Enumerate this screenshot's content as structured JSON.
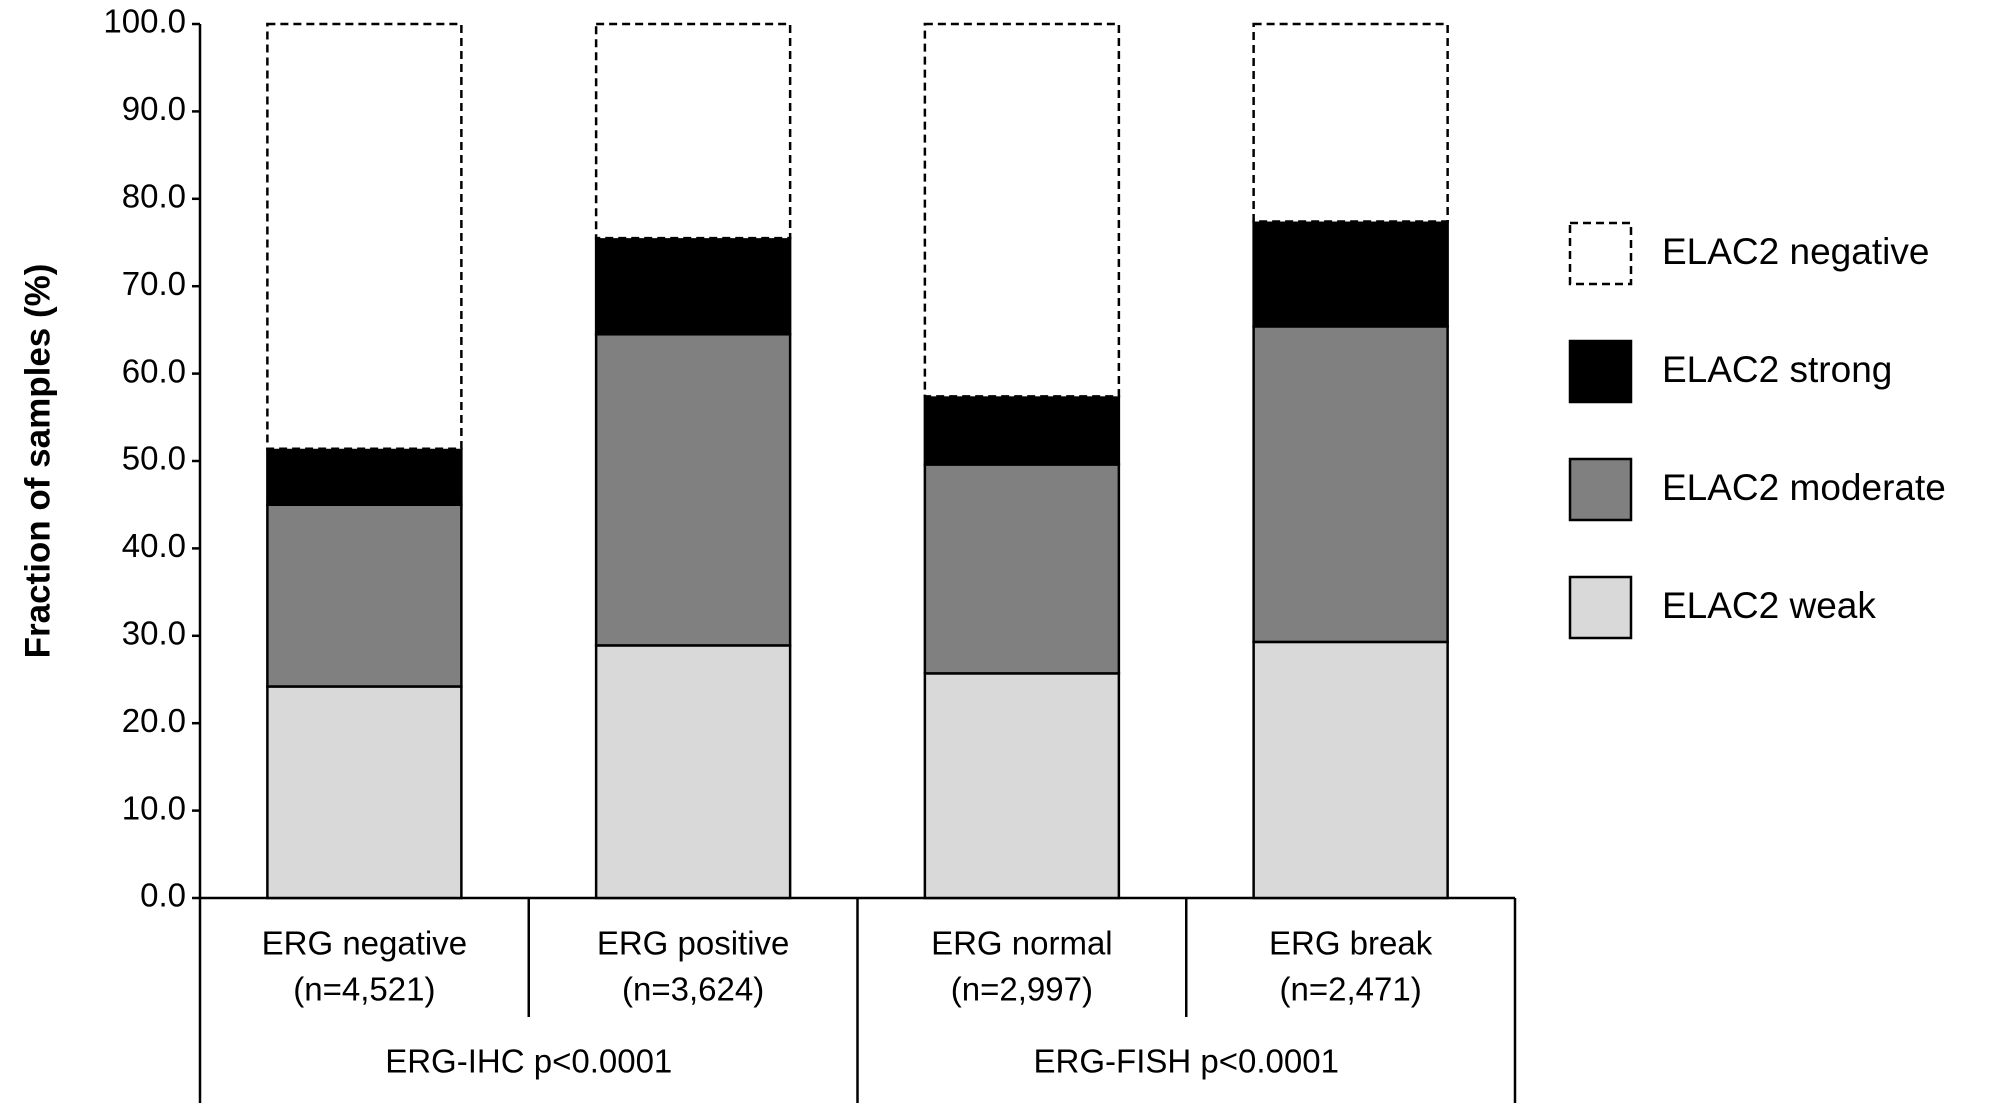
{
  "chart_data": {
    "type": "stacked-bar",
    "y_axis_label": "Fraction of samples (%)",
    "categories": [
      [
        "ERG negative",
        "(n=4,521)"
      ],
      [
        "ERG positive",
        "(n=3,624)"
      ],
      [
        "ERG normal",
        "(n=2,997)"
      ],
      [
        "ERG break",
        "(n=2,471)"
      ]
    ],
    "groups": [
      "ERG-IHC p<0.0001",
      "ERG-FISH p<0.0001"
    ],
    "series": [
      {
        "name": "ELAC2 weak",
        "color": "#d9d9d9",
        "values": [
          24.2,
          28.9,
          25.7,
          29.3
        ]
      },
      {
        "name": "ELAC2 moderate",
        "color": "#808080",
        "values": [
          20.8,
          35.6,
          23.9,
          36.1
        ]
      },
      {
        "name": "ELAC2 strong",
        "color": "#000000",
        "values": [
          6.4,
          11.0,
          7.8,
          12.0
        ]
      },
      {
        "name": "ELAC2 negative",
        "color": "#ffffff",
        "dashed": true,
        "values": [
          48.6,
          24.5,
          42.6,
          22.6
        ]
      }
    ],
    "ylim": [
      0,
      100
    ],
    "yticks": [
      {
        "value": 0,
        "label": "0.0"
      },
      {
        "value": 10,
        "label": "10.0"
      },
      {
        "value": 20,
        "label": "20.0"
      },
      {
        "value": 30,
        "label": "30.0"
      },
      {
        "value": 40,
        "label": "40.0"
      },
      {
        "value": 50,
        "label": "50.0"
      },
      {
        "value": 60,
        "label": "60.0"
      },
      {
        "value": 70,
        "label": "70.0"
      },
      {
        "value": 80,
        "label": "80.0"
      },
      {
        "value": 90,
        "label": "90.0"
      },
      {
        "value": 100,
        "label": "100.0"
      }
    ],
    "grid": false,
    "legend": "right"
  }
}
